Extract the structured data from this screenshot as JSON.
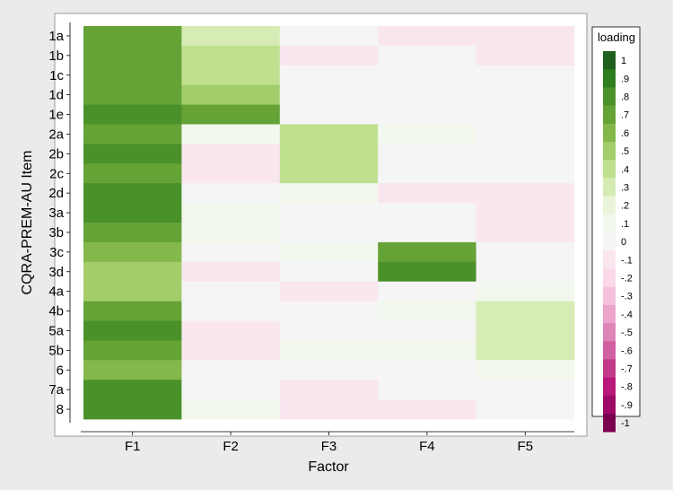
{
  "chart_data": {
    "type": "heatmap",
    "xlabel": "Factor",
    "ylabel": "CQRA-PREM-AU Item",
    "x_categories": [
      "F1",
      "F2",
      "F3",
      "F4",
      "F5"
    ],
    "y_categories": [
      "1a",
      "1b",
      "1c",
      "1d",
      "1e",
      "2a",
      "2b",
      "2c",
      "2d",
      "3a",
      "3b",
      "3c",
      "3d",
      "4a",
      "4b",
      "5a",
      "5b",
      "6",
      "7a",
      "8"
    ],
    "values": [
      [
        0.7,
        0.3,
        0.0,
        -0.05,
        -0.05
      ],
      [
        0.7,
        0.4,
        -0.05,
        0.0,
        -0.05
      ],
      [
        0.7,
        0.4,
        0.0,
        0.0,
        0.0
      ],
      [
        0.7,
        0.5,
        0.0,
        0.0,
        0.0
      ],
      [
        0.8,
        0.7,
        0.0,
        0.0,
        0.0
      ],
      [
        0.7,
        0.05,
        0.4,
        0.05,
        0.0
      ],
      [
        0.8,
        -0.05,
        0.4,
        0.0,
        0.0
      ],
      [
        0.7,
        -0.05,
        0.4,
        0.0,
        0.0
      ],
      [
        0.8,
        0.0,
        0.05,
        -0.05,
        -0.05
      ],
      [
        0.8,
        0.05,
        0.0,
        0.0,
        -0.15
      ],
      [
        0.7,
        0.05,
        0.0,
        0.0,
        -0.05
      ],
      [
        0.6,
        0.0,
        0.05,
        0.7,
        0.0
      ],
      [
        0.5,
        -0.05,
        0.0,
        0.8,
        0.0
      ],
      [
        0.5,
        0.0,
        -0.05,
        0.0,
        0.1
      ],
      [
        0.7,
        0.0,
        0.0,
        0.05,
        0.35
      ],
      [
        0.8,
        -0.05,
        0.0,
        0.0,
        0.35
      ],
      [
        0.7,
        -0.05,
        0.05,
        0.05,
        0.35
      ],
      [
        0.6,
        0.0,
        0.0,
        0.0,
        0.05
      ],
      [
        0.8,
        0.0,
        -0.05,
        0.0,
        0.0
      ],
      [
        0.8,
        0.05,
        -0.1,
        -0.05,
        0.0
      ]
    ],
    "zlim": [
      -1,
      1
    ],
    "legend": {
      "title": "loading",
      "position": "right",
      "labels": [
        "1",
        ".9",
        ".8",
        ".7",
        ".6",
        ".5",
        ".4",
        ".3",
        ".2",
        ".1",
        "0",
        "-.1",
        "-.2",
        "-.3",
        "-.4",
        "-.5",
        "-.6",
        "-.7",
        "-.8",
        "-.9",
        "-1"
      ],
      "colors": [
        "#1e5f1e",
        "#2e7d1f",
        "#4a9129",
        "#66a337",
        "#84b84a",
        "#a3cd6b",
        "#bfe08f",
        "#d7ecb5",
        "#e9f4d9",
        "#f3f8ee",
        "#f5f5f5",
        "#f9e6ef",
        "#fad8e8",
        "#f5c1dc",
        "#eba5cc",
        "#df86b9",
        "#d0609f",
        "#c23b88",
        "#b8187a",
        "#9c0a66",
        "#7a0050"
      ]
    },
    "colors": {
      "positive_max": "#1e5f1e",
      "zero": "#f5f5f5",
      "negative_max": "#7a0050",
      "background": "#ebebeb",
      "plot_background": "#ffffff"
    }
  }
}
